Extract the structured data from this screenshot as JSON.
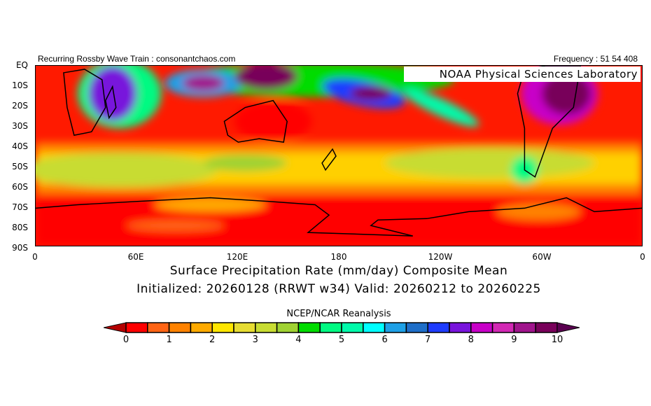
{
  "header": {
    "left": "Recurring Rossby Wave Train : consonantchaos.com",
    "right": "Frequency : 51 54 408",
    "credit": "NOAA Physical Sciences Laboratory"
  },
  "map": {
    "lat_labels": [
      "EQ",
      "10S",
      "20S",
      "30S",
      "40S",
      "50S",
      "60S",
      "70S",
      "80S",
      "90S"
    ],
    "lon_labels": [
      "0",
      "60E",
      "120E",
      "180",
      "120W",
      "60W",
      "0"
    ]
  },
  "titles": {
    "line1": "Surface Precipitation Rate (mm/day) Composite Mean",
    "line2": "Initialized: 20260128 (RRWT w34) Valid: 20260212 to 20260225"
  },
  "colorbar": {
    "source": "NCEP/NCAR Reanalysis",
    "labels": [
      "0",
      "1",
      "2",
      "3",
      "4",
      "5",
      "6",
      "7",
      "8",
      "9",
      "10"
    ],
    "under_color": "#b40000",
    "over_color": "#5a0050",
    "colors": [
      "#ff0000",
      "#ff6414",
      "#ff8200",
      "#ffaa00",
      "#ffe600",
      "#e6dc32",
      "#c8dc32",
      "#a0d232",
      "#00dc00",
      "#00fa82",
      "#00faaa",
      "#00ffff",
      "#1ea0e6",
      "#1e6ec8",
      "#1e3cff",
      "#7814dc",
      "#c800c8",
      "#d228b4",
      "#a0148c",
      "#78005a"
    ]
  }
}
